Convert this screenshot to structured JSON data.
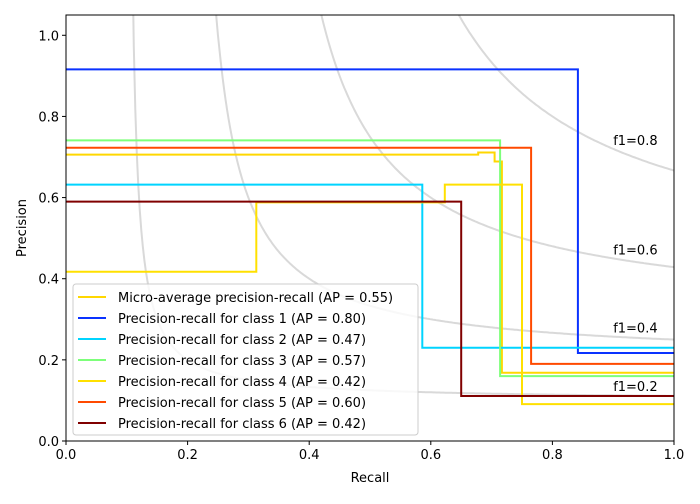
{
  "chart_data": {
    "type": "line",
    "title": "",
    "xlabel": "Recall",
    "ylabel": "Precision",
    "xlim": [
      0,
      1
    ],
    "ylim": [
      0,
      1.05
    ],
    "xticks": [
      "0.0",
      "0.2",
      "0.4",
      "0.6",
      "0.8",
      "1.0"
    ],
    "yticks": [
      "0.0",
      "0.2",
      "0.4",
      "0.6",
      "0.8",
      "1.0"
    ],
    "grid": false,
    "legend_position": "lower-left",
    "iso_f1": [
      {
        "f": 0.2,
        "label": "f1=0.2"
      },
      {
        "f": 0.4,
        "label": "f1=0.4"
      },
      {
        "f": 0.6,
        "label": "f1=0.6"
      },
      {
        "f": 0.8,
        "label": "f1=0.8"
      }
    ],
    "iso_f1_color": "#d9d9d9",
    "series": [
      {
        "name": "Micro-average precision-recall (AP = 0.55)",
        "color": "#ffd700",
        "points": [
          [
            0,
            0.706
          ],
          [
            0.678,
            0.706
          ],
          [
            0.678,
            0.711
          ],
          [
            0.705,
            0.711
          ],
          [
            0.705,
            0.689
          ],
          [
            0.717,
            0.689
          ],
          [
            0.717,
            0.168
          ],
          [
            1,
            0.168
          ]
        ]
      },
      {
        "name": "Precision-recall for class 1 (AP = 0.80)",
        "color": "#0a32ff",
        "points": [
          [
            0,
            0.916
          ],
          [
            0.842,
            0.916
          ],
          [
            0.842,
            0.217
          ],
          [
            1,
            0.217
          ]
        ]
      },
      {
        "name": "Precision-recall for class 2 (AP = 0.47)",
        "color": "#00d4ff",
        "points": [
          [
            0,
            0.632
          ],
          [
            0.586,
            0.632
          ],
          [
            0.586,
            0.23
          ],
          [
            1,
            0.23
          ]
        ]
      },
      {
        "name": "Precision-recall for class 3 (AP = 0.57)",
        "color": "#7dff7a",
        "points": [
          [
            0,
            0.741
          ],
          [
            0.714,
            0.741
          ],
          [
            0.714,
            0.16
          ],
          [
            1,
            0.16
          ]
        ]
      },
      {
        "name": "Precision-recall for class 4 (AP = 0.42)",
        "color": "#ffe000",
        "points": [
          [
            0,
            0.417
          ],
          [
            0.313,
            0.417
          ],
          [
            0.313,
            0.588
          ],
          [
            0.623,
            0.588
          ],
          [
            0.623,
            0.632
          ],
          [
            0.75,
            0.632
          ],
          [
            0.75,
            0.091
          ],
          [
            1,
            0.091
          ]
        ]
      },
      {
        "name": "Precision-recall for class 5 (AP = 0.60)",
        "color": "#ff4a00",
        "points": [
          [
            0,
            0.723
          ],
          [
            0.765,
            0.723
          ],
          [
            0.765,
            0.19
          ],
          [
            1,
            0.19
          ]
        ]
      },
      {
        "name": "Precision-recall for class 6 (AP = 0.42)",
        "color": "#800000",
        "points": [
          [
            0,
            0.59
          ],
          [
            0.65,
            0.59
          ],
          [
            0.65,
            0.111
          ],
          [
            1,
            0.111
          ]
        ]
      }
    ]
  }
}
